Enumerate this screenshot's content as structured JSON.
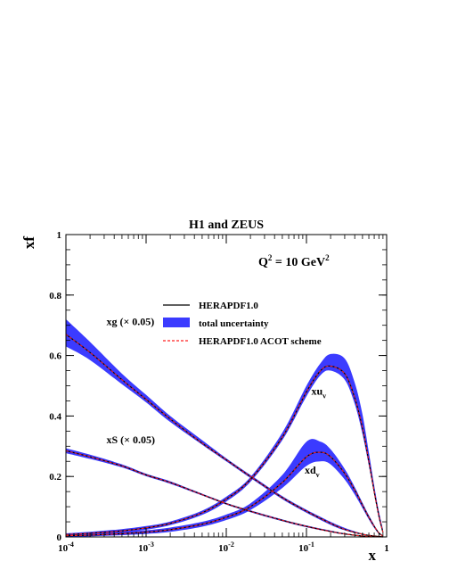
{
  "chart_data": {
    "type": "line",
    "title": "H1 and ZEUS",
    "xlabel": "x",
    "ylabel": "xf",
    "xscale": "log",
    "xlim": [
      0.0001,
      1
    ],
    "ylim": [
      0,
      1
    ],
    "xticks": [
      {
        "value": 0.0001,
        "base": "10",
        "exp": "-4"
      },
      {
        "value": 0.001,
        "base": "10",
        "exp": "-3"
      },
      {
        "value": 0.01,
        "base": "10",
        "exp": "-2"
      },
      {
        "value": 0.1,
        "base": "10",
        "exp": "-1"
      },
      {
        "value": 1,
        "base": "1",
        "exp": ""
      }
    ],
    "yticks": [
      {
        "value": 0,
        "label": "0"
      },
      {
        "value": 0.2,
        "label": "0.2"
      },
      {
        "value": 0.4,
        "label": "0.4"
      },
      {
        "value": 0.6,
        "label": "0.6"
      },
      {
        "value": 0.8,
        "label": "0.8"
      },
      {
        "value": 1,
        "label": "1"
      }
    ],
    "q2_label": {
      "base": "Q",
      "sup": "2",
      "mid": " = 10 GeV",
      "sup2": "2"
    },
    "legend": {
      "placement": "center",
      "entries": [
        {
          "label": "HERAPDF1.0",
          "style": "line",
          "color": "#000000"
        },
        {
          "label": "total uncertainty",
          "style": "band",
          "color": "#3b3bff"
        },
        {
          "label": "HERAPDF1.0 ACOT scheme",
          "style": "dashed",
          "color": "#ff2020"
        }
      ]
    },
    "colors": {
      "band": "#3b3bff",
      "central": "#000000",
      "acot": "#ff2020"
    },
    "series": [
      {
        "label": "xg (× 0.05)",
        "annotation": {
          "text": "xg (× 0.05)",
          "x": 0.00032,
          "y": 0.7
        },
        "x": [
          0.0001,
          0.0002,
          0.0005,
          0.001,
          0.002,
          0.005,
          0.01,
          0.02,
          0.05,
          0.1,
          0.2,
          0.3,
          0.5,
          0.7,
          0.9
        ],
        "central": [
          0.67,
          0.61,
          0.52,
          0.455,
          0.39,
          0.31,
          0.255,
          0.2,
          0.13,
          0.085,
          0.045,
          0.025,
          0.009,
          0.003,
          0.0005
        ],
        "lower": [
          0.63,
          0.585,
          0.505,
          0.445,
          0.38,
          0.305,
          0.25,
          0.195,
          0.125,
          0.08,
          0.04,
          0.022,
          0.007,
          0.002,
          0.0
        ],
        "upper": [
          0.72,
          0.645,
          0.54,
          0.47,
          0.4,
          0.32,
          0.26,
          0.205,
          0.135,
          0.09,
          0.05,
          0.03,
          0.011,
          0.004,
          0.001
        ]
      },
      {
        "label": "xS (× 0.05)",
        "annotation": {
          "text": "xS (× 0.05)",
          "x": 0.00032,
          "y": 0.31
        },
        "x": [
          0.0001,
          0.0002,
          0.0005,
          0.001,
          0.002,
          0.005,
          0.01,
          0.02,
          0.05,
          0.1,
          0.2,
          0.3,
          0.5,
          0.7,
          0.9
        ],
        "central": [
          0.285,
          0.265,
          0.235,
          0.205,
          0.18,
          0.14,
          0.11,
          0.085,
          0.055,
          0.035,
          0.018,
          0.01,
          0.003,
          0.001,
          0.0
        ],
        "lower": [
          0.277,
          0.258,
          0.23,
          0.201,
          0.176,
          0.137,
          0.107,
          0.082,
          0.052,
          0.032,
          0.016,
          0.008,
          0.002,
          0.0,
          0.0
        ],
        "upper": [
          0.293,
          0.272,
          0.24,
          0.209,
          0.184,
          0.143,
          0.113,
          0.088,
          0.058,
          0.038,
          0.021,
          0.012,
          0.004,
          0.002,
          0.0005
        ]
      },
      {
        "label": "xu_v",
        "annotation": {
          "text": "xu",
          "sub": "v",
          "x": 0.115,
          "y": 0.47
        },
        "x": [
          0.0001,
          0.0002,
          0.0005,
          0.001,
          0.002,
          0.005,
          0.01,
          0.02,
          0.05,
          0.1,
          0.15,
          0.2,
          0.3,
          0.4,
          0.5,
          0.6,
          0.7,
          0.8,
          0.9
        ],
        "central": [
          0.008,
          0.012,
          0.02,
          0.03,
          0.045,
          0.08,
          0.125,
          0.19,
          0.33,
          0.48,
          0.55,
          0.565,
          0.54,
          0.46,
          0.36,
          0.25,
          0.15,
          0.07,
          0.015
        ],
        "lower": [
          0.004,
          0.007,
          0.014,
          0.024,
          0.039,
          0.073,
          0.117,
          0.182,
          0.32,
          0.465,
          0.535,
          0.55,
          0.52,
          0.44,
          0.34,
          0.235,
          0.14,
          0.06,
          0.01
        ],
        "upper": [
          0.012,
          0.017,
          0.026,
          0.036,
          0.051,
          0.087,
          0.133,
          0.198,
          0.345,
          0.5,
          0.575,
          0.605,
          0.59,
          0.51,
          0.405,
          0.28,
          0.17,
          0.085,
          0.025
        ]
      },
      {
        "label": "xd_v",
        "annotation": {
          "text": "xd",
          "sub": "v",
          "x": 0.095,
          "y": 0.21
        },
        "x": [
          0.0001,
          0.0002,
          0.0005,
          0.001,
          0.002,
          0.005,
          0.01,
          0.02,
          0.05,
          0.1,
          0.15,
          0.2,
          0.3,
          0.4,
          0.5,
          0.6,
          0.7,
          0.8,
          0.9
        ],
        "central": [
          0.004,
          0.006,
          0.011,
          0.016,
          0.024,
          0.042,
          0.065,
          0.1,
          0.18,
          0.265,
          0.28,
          0.265,
          0.21,
          0.155,
          0.105,
          0.065,
          0.035,
          0.013,
          0.003
        ],
        "lower": [
          0.001,
          0.002,
          0.006,
          0.01,
          0.017,
          0.034,
          0.056,
          0.089,
          0.162,
          0.235,
          0.25,
          0.24,
          0.19,
          0.14,
          0.095,
          0.058,
          0.03,
          0.01,
          0.002
        ],
        "upper": [
          0.007,
          0.01,
          0.016,
          0.022,
          0.031,
          0.05,
          0.074,
          0.111,
          0.205,
          0.315,
          0.315,
          0.29,
          0.225,
          0.165,
          0.113,
          0.072,
          0.04,
          0.016,
          0.005
        ]
      }
    ]
  }
}
